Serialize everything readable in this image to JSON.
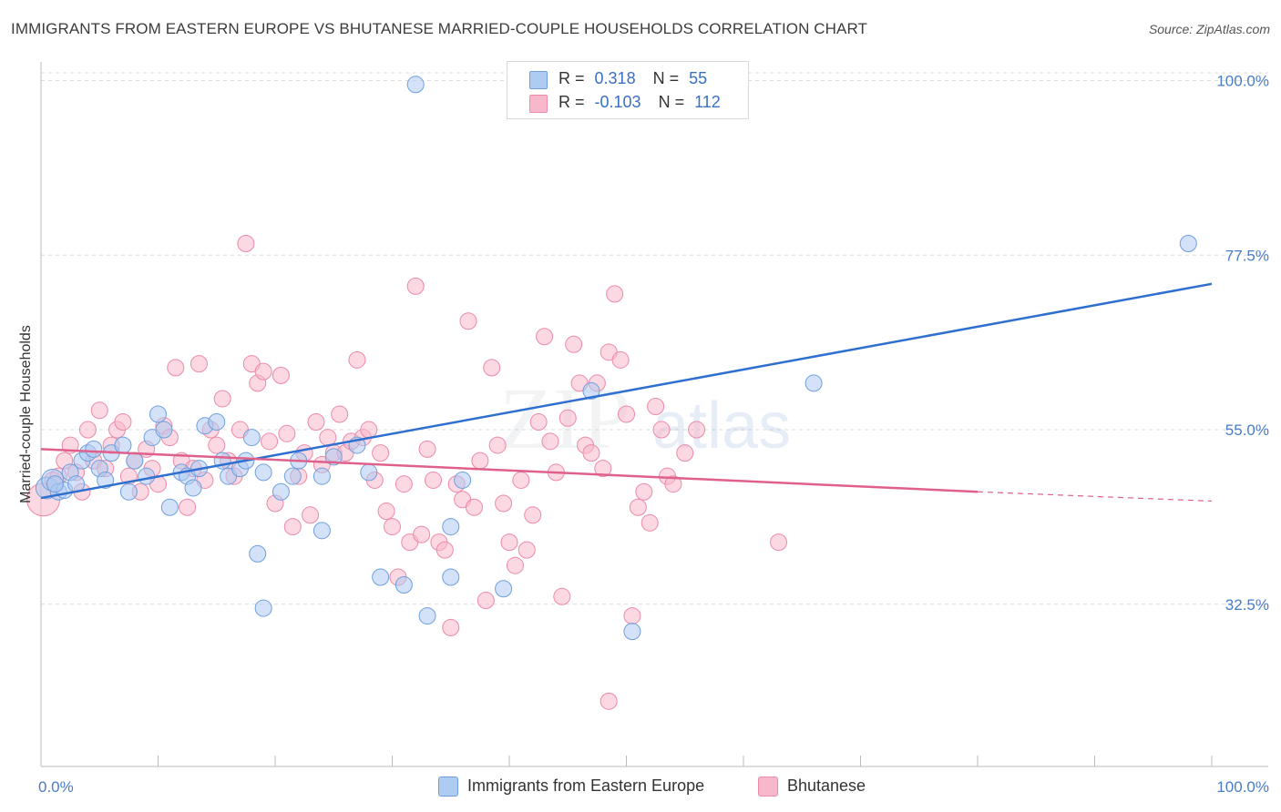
{
  "header": {
    "title": "IMMIGRANTS FROM EASTERN EUROPE VS BHUTANESE MARRIED-COUPLE HOUSEHOLDS CORRELATION CHART",
    "source": "Source: ZipAtlas.com"
  },
  "watermark": {
    "zip": "ZIP",
    "atlas": "atlas"
  },
  "stats_legend": {
    "rows": [
      {
        "r_label": "R =",
        "r_value": "0.318",
        "n_label": "N =",
        "n_value": "55",
        "color": "#aecbf2"
      },
      {
        "r_label": "R =",
        "r_value": "-0.103",
        "n_label": "N =",
        "n_value": "112",
        "color": "#f7b8cb"
      }
    ]
  },
  "bottom_legend": {
    "items": [
      {
        "label": "Immigrants from Eastern Europe",
        "color": "#aecbf2"
      },
      {
        "label": "Bhutanese",
        "color": "#f7b8cb"
      }
    ]
  },
  "chart_data": {
    "type": "scatter",
    "title": "IMMIGRANTS FROM EASTERN EUROPE VS BHUTANESE MARRIED-COUPLE HOUSEHOLDS CORRELATION CHART",
    "xlabel": "",
    "ylabel": "Married-couple Households",
    "xlim": [
      0,
      100
    ],
    "ylim": [
      13,
      101
    ],
    "x_tick_labels": [
      "0.0%",
      "100.0%"
    ],
    "y_ticks": [
      32.5,
      55.0,
      77.5,
      100.0
    ],
    "y_tick_labels": [
      "32.5%",
      "55.0%",
      "77.5%",
      "100.0%"
    ],
    "grid": true,
    "colors": {
      "blue_fill": "#aecbf2",
      "blue_stroke": "#6f9fde",
      "blue_line": "#2f6fd0",
      "pink_fill": "#f7b8cb",
      "pink_stroke": "#ec8aa8",
      "pink_line": "#e0608c",
      "axis_text": "#4a7cc7"
    },
    "trendlines": [
      {
        "series": "Immigrants from Eastern Europe",
        "x": [
          0,
          100
        ],
        "y": [
          46.2,
          73.8
        ],
        "dashed_after": null
      },
      {
        "series": "Bhutanese",
        "x": [
          0,
          80,
          100
        ],
        "y": [
          52.5,
          47.0,
          45.8
        ],
        "dashed_after": 80
      }
    ],
    "series": [
      {
        "name": "Immigrants from Eastern Europe",
        "points": [
          [
            0.5,
            47.5
          ],
          [
            1,
            48.5
          ],
          [
            1.5,
            47
          ],
          [
            2,
            47.2
          ],
          [
            1.2,
            48
          ],
          [
            2.5,
            49.5
          ],
          [
            3,
            48
          ],
          [
            3.5,
            51
          ],
          [
            4,
            52
          ],
          [
            4.5,
            52.5
          ],
          [
            5,
            50
          ],
          [
            5.5,
            48.5
          ],
          [
            6,
            52
          ],
          [
            7,
            53
          ],
          [
            8,
            51
          ],
          [
            7.5,
            47
          ],
          [
            9,
            49
          ],
          [
            9.5,
            54
          ],
          [
            10,
            57
          ],
          [
            10.5,
            55
          ],
          [
            11,
            45
          ],
          [
            12,
            49.5
          ],
          [
            12.5,
            49
          ],
          [
            13,
            47.5
          ],
          [
            14,
            55.5
          ],
          [
            15,
            56
          ],
          [
            13.5,
            50
          ],
          [
            16,
            49
          ],
          [
            15.5,
            51
          ],
          [
            17,
            50
          ],
          [
            17.5,
            51
          ],
          [
            18,
            54
          ],
          [
            19,
            49.5
          ],
          [
            20.5,
            47
          ],
          [
            18.5,
            39
          ],
          [
            19,
            32
          ],
          [
            21.5,
            49
          ],
          [
            22,
            51
          ],
          [
            24,
            49
          ],
          [
            24,
            42
          ],
          [
            25,
            51.5
          ],
          [
            27,
            53
          ],
          [
            28,
            49.5
          ],
          [
            29,
            36
          ],
          [
            32,
            99.5
          ],
          [
            31,
            35
          ],
          [
            35,
            36
          ],
          [
            35,
            42.5
          ],
          [
            36,
            48.5
          ],
          [
            39.5,
            34.5
          ],
          [
            33,
            31
          ],
          [
            98,
            79
          ],
          [
            66,
            61
          ],
          [
            47,
            60
          ],
          [
            50.5,
            29
          ]
        ]
      },
      {
        "name": "Bhutanese",
        "points": [
          [
            0.2,
            46
          ],
          [
            1,
            48.5
          ],
          [
            1.5,
            49
          ],
          [
            2,
            51
          ],
          [
            2.5,
            53
          ],
          [
            3,
            49.5
          ],
          [
            3.5,
            47
          ],
          [
            4,
            55
          ],
          [
            4.5,
            51
          ],
          [
            5,
            57.5
          ],
          [
            5.5,
            50
          ],
          [
            6,
            53
          ],
          [
            6.5,
            55
          ],
          [
            7,
            56
          ],
          [
            7.5,
            49
          ],
          [
            8,
            51
          ],
          [
            8.5,
            47
          ],
          [
            9,
            52.5
          ],
          [
            9.5,
            50
          ],
          [
            10,
            48
          ],
          [
            10.5,
            55.5
          ],
          [
            11,
            54
          ],
          [
            11.5,
            63
          ],
          [
            12,
            51
          ],
          [
            12.5,
            45
          ],
          [
            13,
            50
          ],
          [
            13.5,
            63.5
          ],
          [
            14,
            48.5
          ],
          [
            14.5,
            55
          ],
          [
            15,
            53
          ],
          [
            15.5,
            59
          ],
          [
            16,
            51
          ],
          [
            16.5,
            49
          ],
          [
            17,
            55
          ],
          [
            17.5,
            79
          ],
          [
            18,
            63.5
          ],
          [
            18.5,
            61
          ],
          [
            19,
            62.5
          ],
          [
            19.5,
            53.5
          ],
          [
            20,
            45.5
          ],
          [
            20.5,
            62
          ],
          [
            21,
            54.5
          ],
          [
            21.5,
            42.5
          ],
          [
            22,
            49
          ],
          [
            22.5,
            52
          ],
          [
            23,
            44
          ],
          [
            23.5,
            56
          ],
          [
            24,
            50.5
          ],
          [
            24.5,
            54
          ],
          [
            25,
            52
          ],
          [
            25.5,
            57
          ],
          [
            26,
            52
          ],
          [
            26.5,
            53.5
          ],
          [
            27,
            64
          ],
          [
            27.5,
            54
          ],
          [
            28,
            55
          ],
          [
            28.5,
            48.5
          ],
          [
            29,
            52
          ],
          [
            29.5,
            44.5
          ],
          [
            30,
            42.5
          ],
          [
            30.5,
            36
          ],
          [
            31,
            48
          ],
          [
            31.5,
            40.5
          ],
          [
            32,
            73.5
          ],
          [
            32.5,
            41.5
          ],
          [
            33,
            52.5
          ],
          [
            33.5,
            48.5
          ],
          [
            34,
            40.5
          ],
          [
            34.5,
            39.5
          ],
          [
            35,
            29.5
          ],
          [
            35.5,
            48
          ],
          [
            36,
            46
          ],
          [
            36.5,
            69
          ],
          [
            37,
            45
          ],
          [
            37.5,
            51
          ],
          [
            38,
            33
          ],
          [
            38.5,
            63
          ],
          [
            39,
            53
          ],
          [
            39.5,
            45.5
          ],
          [
            40,
            40.5
          ],
          [
            40.5,
            37.5
          ],
          [
            41,
            48.5
          ],
          [
            41.5,
            39.5
          ],
          [
            42,
            44
          ],
          [
            42.5,
            56
          ],
          [
            43,
            67
          ],
          [
            43.5,
            53.5
          ],
          [
            44,
            49.5
          ],
          [
            44.5,
            33.5
          ],
          [
            45,
            56.5
          ],
          [
            45.5,
            66
          ],
          [
            46,
            61
          ],
          [
            46.5,
            53
          ],
          [
            47,
            52
          ],
          [
            47.5,
            61
          ],
          [
            48,
            50
          ],
          [
            48.5,
            65
          ],
          [
            48.5,
            20
          ],
          [
            49,
            72.5
          ],
          [
            49.5,
            64
          ],
          [
            50,
            57
          ],
          [
            50.5,
            31
          ],
          [
            51,
            45
          ],
          [
            51.5,
            47
          ],
          [
            52,
            43
          ],
          [
            52.5,
            58
          ],
          [
            53,
            55
          ],
          [
            53.5,
            49
          ],
          [
            54,
            48
          ],
          [
            55,
            52
          ],
          [
            56,
            55
          ],
          [
            63,
            40.5
          ]
        ]
      }
    ]
  }
}
